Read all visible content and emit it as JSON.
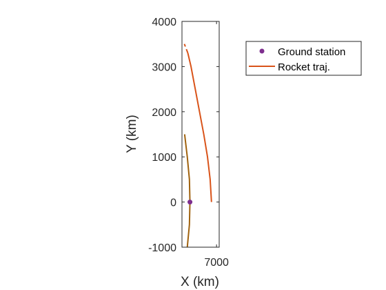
{
  "chart_data": {
    "type": "line",
    "xlabel": "X (km)",
    "ylabel": "Y (km)",
    "xlim": [
      6350,
      7050
    ],
    "ylim": [
      -1000,
      4000
    ],
    "xticks": [
      7000
    ],
    "xtick_labels": [
      "7000"
    ],
    "yticks": [
      -1000,
      0,
      1000,
      2000,
      3000,
      4000
    ],
    "ytick_labels": [
      "-1000",
      "0",
      "1000",
      "2000",
      "3000",
      "4000"
    ],
    "grid": false,
    "legend_position": "outside-right",
    "legend": [
      {
        "label": "Ground station",
        "marker": "dot",
        "color": "#7E2F8E"
      },
      {
        "label": "Rocket traj.",
        "marker": "line",
        "color": "#D95319"
      }
    ],
    "series": [
      {
        "name": "Ground station",
        "kind": "scatter",
        "color": "#7E2F8E",
        "points": [
          {
            "x": 6500,
            "y": 0
          }
        ]
      },
      {
        "name": "Rocket traj.",
        "kind": "line",
        "color": "#D95319",
        "points": [
          {
            "x": 6905,
            "y": 0
          },
          {
            "x": 6880,
            "y": 500
          },
          {
            "x": 6830,
            "y": 1000
          },
          {
            "x": 6760,
            "y": 1500
          },
          {
            "x": 6680,
            "y": 2000
          },
          {
            "x": 6600,
            "y": 2500
          },
          {
            "x": 6520,
            "y": 3000
          },
          {
            "x": 6460,
            "y": 3300
          }
        ]
      },
      {
        "name": "",
        "kind": "dashed",
        "color": "#D95319",
        "points": [
          {
            "x": 6460,
            "y": 3300
          },
          {
            "x": 6395,
            "y": 3500
          }
        ]
      },
      {
        "name": "",
        "kind": "line",
        "color": "#A0620E",
        "points": [
          {
            "x": 6400,
            "y": 1500
          },
          {
            "x": 6450,
            "y": 1000
          },
          {
            "x": 6490,
            "y": 500
          },
          {
            "x": 6500,
            "y": 0
          },
          {
            "x": 6490,
            "y": -500
          },
          {
            "x": 6450,
            "y": -1000
          }
        ]
      }
    ]
  }
}
